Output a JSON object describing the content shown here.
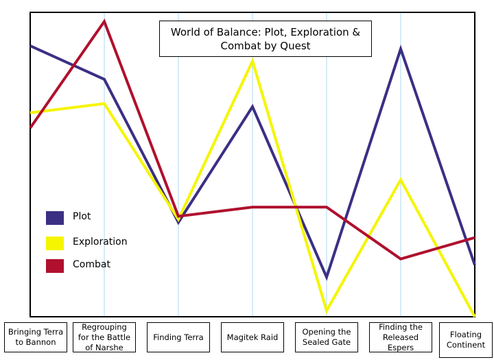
{
  "chart_data": {
    "type": "line",
    "title": "World of Balance: Plot, Exploration & Combat by Quest",
    "categories": [
      "Bringing Terra to Bannon",
      "Regrouping for the Battle of Narshe",
      "Finding Terra",
      "Magitek Raid",
      "Opening the Sealed Gate",
      "Finding the Released Espers",
      "Floating Continent"
    ],
    "series": [
      {
        "name": "Plot",
        "color": "#3b2f84",
        "values": [
          89,
          78,
          31,
          69,
          13,
          88,
          17
        ]
      },
      {
        "name": "Exploration",
        "color": "#f5f500",
        "values": [
          67,
          70,
          32,
          84,
          2,
          45,
          0
        ]
      },
      {
        "name": "Combat",
        "color": "#b0102e",
        "values": [
          62,
          97,
          33,
          36,
          36,
          19,
          26
        ]
      }
    ],
    "ylim": [
      0,
      100
    ],
    "grid": true
  }
}
